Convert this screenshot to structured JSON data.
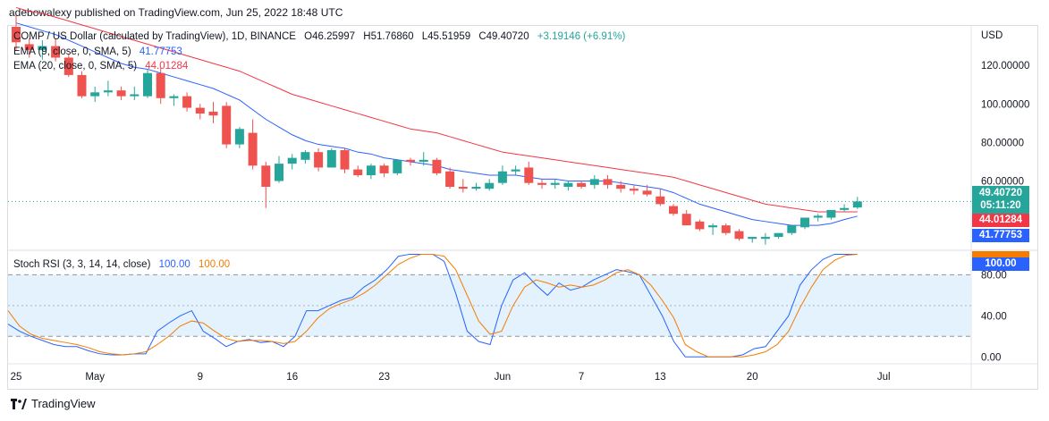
{
  "header": {
    "publisher_line": "adebowalexy published on TradingView.com, Jun 25, 2022 18:48 UTC"
  },
  "footer": {
    "brand": "TradingView",
    "logo_icon": "tradingview-logo-icon"
  },
  "colors": {
    "up": "#26a69a",
    "down": "#ef5350",
    "ema9": "#2962ff",
    "ema20": "#f23645",
    "k_line": "#2962ff",
    "d_line": "#f57c00",
    "band_fill": "#e3f2fd",
    "last_price": "#26a69a"
  },
  "chart_data": [
    {
      "type": "candlestick",
      "title": "COMP / US Dollar (calculated by TradingView), 1D, BINANCE",
      "ohlc_readout": {
        "open": "O46.25997",
        "high": "H51.76860",
        "low": "L45.51959",
        "close": "C49.40720",
        "change": "+3.19146 (+6.91%)"
      },
      "currency": "USD",
      "y_ticks": [
        "120.00000",
        "100.00000",
        "80.00000",
        "60.00000"
      ],
      "y_tick_values": [
        120,
        100,
        80,
        60
      ],
      "ylim": [
        25,
        140
      ],
      "x_tick_labels": [
        "25",
        "May",
        "9",
        "16",
        "23",
        "Jun",
        "7",
        "13",
        "20",
        "Jul"
      ],
      "x_tick_days": [
        0,
        6,
        14,
        21,
        28,
        37,
        43,
        49,
        56,
        66
      ],
      "start_date": "2022-04-25",
      "candles": [
        {
          "o": 140,
          "h": 146,
          "l": 128,
          "c": 132
        },
        {
          "o": 131,
          "h": 134,
          "l": 124,
          "c": 128
        },
        {
          "o": 128,
          "h": 133,
          "l": 123,
          "c": 130
        },
        {
          "o": 130,
          "h": 134,
          "l": 122,
          "c": 124
        },
        {
          "o": 124,
          "h": 126,
          "l": 114,
          "c": 115
        },
        {
          "o": 115,
          "h": 117,
          "l": 103,
          "c": 104
        },
        {
          "o": 104,
          "h": 109,
          "l": 101,
          "c": 106
        },
        {
          "o": 106,
          "h": 112,
          "l": 104,
          "c": 107
        },
        {
          "o": 107,
          "h": 109,
          "l": 102,
          "c": 104
        },
        {
          "o": 104,
          "h": 109,
          "l": 102,
          "c": 105
        },
        {
          "o": 104,
          "h": 118,
          "l": 103,
          "c": 116
        },
        {
          "o": 116,
          "h": 119,
          "l": 100,
          "c": 103
        },
        {
          "o": 103,
          "h": 105,
          "l": 99,
          "c": 104
        },
        {
          "o": 104,
          "h": 106,
          "l": 96,
          "c": 98
        },
        {
          "o": 98,
          "h": 100,
          "l": 92,
          "c": 95
        },
        {
          "o": 96,
          "h": 101,
          "l": 90,
          "c": 94
        },
        {
          "o": 99,
          "h": 101,
          "l": 77,
          "c": 79
        },
        {
          "o": 79,
          "h": 88,
          "l": 77,
          "c": 87
        },
        {
          "o": 85,
          "h": 92,
          "l": 66,
          "c": 68
        },
        {
          "o": 68,
          "h": 70,
          "l": 46,
          "c": 57
        },
        {
          "o": 60,
          "h": 73,
          "l": 59,
          "c": 69
        },
        {
          "o": 69,
          "h": 74,
          "l": 66,
          "c": 72
        },
        {
          "o": 71,
          "h": 76,
          "l": 69,
          "c": 75
        },
        {
          "o": 75,
          "h": 77,
          "l": 65,
          "c": 67
        },
        {
          "o": 67,
          "h": 77,
          "l": 67,
          "c": 76
        },
        {
          "o": 76,
          "h": 77,
          "l": 64,
          "c": 66
        },
        {
          "o": 66,
          "h": 68,
          "l": 62,
          "c": 63
        },
        {
          "o": 63,
          "h": 69,
          "l": 61,
          "c": 68
        },
        {
          "o": 68,
          "h": 69,
          "l": 62,
          "c": 64
        },
        {
          "o": 64,
          "h": 71,
          "l": 63,
          "c": 71
        },
        {
          "o": 71,
          "h": 72,
          "l": 68,
          "c": 70
        },
        {
          "o": 70,
          "h": 75,
          "l": 68,
          "c": 71
        },
        {
          "o": 71,
          "h": 72,
          "l": 63,
          "c": 64
        },
        {
          "o": 65,
          "h": 67,
          "l": 56,
          "c": 57
        },
        {
          "o": 57,
          "h": 61,
          "l": 54,
          "c": 56
        },
        {
          "o": 56,
          "h": 59,
          "l": 55,
          "c": 57
        },
        {
          "o": 56,
          "h": 61,
          "l": 55,
          "c": 59
        },
        {
          "o": 59,
          "h": 68,
          "l": 58,
          "c": 65
        },
        {
          "o": 65,
          "h": 68,
          "l": 63,
          "c": 66
        },
        {
          "o": 67,
          "h": 70,
          "l": 58,
          "c": 59
        },
        {
          "o": 59,
          "h": 61,
          "l": 56,
          "c": 58
        },
        {
          "o": 58,
          "h": 61,
          "l": 56,
          "c": 59
        },
        {
          "o": 57,
          "h": 60,
          "l": 55,
          "c": 59
        },
        {
          "o": 59,
          "h": 60,
          "l": 56,
          "c": 57
        },
        {
          "o": 58,
          "h": 63,
          "l": 56,
          "c": 61
        },
        {
          "o": 61,
          "h": 63,
          "l": 56,
          "c": 58
        },
        {
          "o": 58,
          "h": 60,
          "l": 54,
          "c": 56
        },
        {
          "o": 56,
          "h": 58,
          "l": 53,
          "c": 55
        },
        {
          "o": 55,
          "h": 58,
          "l": 52,
          "c": 53
        },
        {
          "o": 52,
          "h": 56,
          "l": 47,
          "c": 48
        },
        {
          "o": 47,
          "h": 48,
          "l": 42,
          "c": 43
        },
        {
          "o": 43,
          "h": 45,
          "l": 37,
          "c": 37
        },
        {
          "o": 39,
          "h": 40,
          "l": 34,
          "c": 35
        },
        {
          "o": 36,
          "h": 38,
          "l": 32,
          "c": 37
        },
        {
          "o": 37,
          "h": 38,
          "l": 32,
          "c": 33
        },
        {
          "o": 34,
          "h": 35,
          "l": 29,
          "c": 30
        },
        {
          "o": 30,
          "h": 31,
          "l": 28,
          "c": 31
        },
        {
          "o": 30,
          "h": 33,
          "l": 27,
          "c": 31
        },
        {
          "o": 31,
          "h": 33,
          "l": 30,
          "c": 33
        },
        {
          "o": 33,
          "h": 37,
          "l": 32,
          "c": 37
        },
        {
          "o": 36,
          "h": 41,
          "l": 35,
          "c": 41
        },
        {
          "o": 41,
          "h": 43,
          "l": 39,
          "c": 42
        },
        {
          "o": 41,
          "h": 44,
          "l": 40,
          "c": 45
        },
        {
          "o": 45,
          "h": 48,
          "l": 44,
          "c": 46
        },
        {
          "o": 46.26,
          "h": 51.77,
          "l": 45.52,
          "c": 49.41
        }
      ],
      "indicators": [
        {
          "name": "EMA (9, close, 0, SMA, 5)",
          "value": "41.77753",
          "color": "#2962ff",
          "values": [
            142,
            140,
            138,
            136,
            133,
            130,
            127,
            124,
            121,
            119,
            118,
            116,
            114,
            112,
            110,
            108,
            105,
            102,
            97,
            92,
            88,
            84,
            81,
            79,
            78,
            77,
            75,
            74,
            72,
            71,
            70,
            69,
            68,
            66,
            65,
            64,
            63,
            63,
            63,
            62,
            61,
            61,
            60,
            60,
            60,
            60,
            59,
            58,
            57,
            56,
            54,
            51,
            48,
            46,
            44,
            42,
            40,
            39,
            38,
            37,
            37,
            37,
            38,
            40,
            41.78
          ]
        },
        {
          "name": "EMA (20, close, 0, SMA, 5)",
          "value": "44.01284",
          "color": "#f23645",
          "values": [
            150,
            148,
            147,
            145,
            143,
            141,
            139,
            137,
            135,
            133,
            131,
            129,
            127,
            125,
            123,
            121,
            119,
            117,
            114,
            111,
            108,
            105,
            103,
            101,
            99,
            97,
            95,
            93,
            91,
            89,
            87,
            86,
            85,
            83,
            81,
            79,
            77,
            75,
            74,
            73,
            72,
            71,
            70,
            69,
            68,
            67,
            66,
            65,
            64,
            63,
            62,
            60,
            58,
            56,
            54,
            52,
            50,
            48,
            47,
            46,
            45,
            44,
            44,
            44,
            44.01
          ]
        }
      ],
      "last_price": "49.40720",
      "countdown": "05:11:20"
    },
    {
      "type": "line",
      "title": "Stoch RSI (3, 3, 14, 14, close)",
      "y_ticks": [
        "80.00",
        "40.00",
        "0.00"
      ],
      "y_tick_values": [
        80,
        40,
        0
      ],
      "ylim": [
        -5,
        103
      ],
      "band": [
        20,
        80
      ],
      "mid_line": 50,
      "series": [
        {
          "name": "K",
          "value": "100.00",
          "color": "#2962ff",
          "values": [
            32,
            25,
            20,
            16,
            12,
            10,
            10,
            6,
            3,
            2,
            2,
            3,
            3,
            25,
            33,
            40,
            45,
            25,
            18,
            10,
            15,
            17,
            14,
            15,
            10,
            20,
            45,
            45,
            50,
            55,
            58,
            68,
            75,
            85,
            98,
            102,
            102,
            101,
            93,
            62,
            25,
            15,
            12,
            50,
            75,
            82,
            70,
            60,
            72,
            65,
            68,
            75,
            80,
            85,
            83,
            80,
            60,
            40,
            15,
            0,
            0,
            0,
            0,
            0,
            2,
            8,
            10,
            25,
            40,
            70,
            85,
            95,
            100,
            100,
            100
          ]
        },
        {
          "name": "D",
          "value": "100.00",
          "color": "#f57c00",
          "values": [
            45,
            30,
            22,
            18,
            16,
            14,
            12,
            9,
            5,
            3,
            2,
            3,
            5,
            12,
            20,
            30,
            35,
            33,
            25,
            18,
            15,
            16,
            16,
            15,
            13,
            15,
            25,
            38,
            47,
            52,
            56,
            62,
            70,
            80,
            90,
            96,
            102,
            102,
            98,
            85,
            60,
            35,
            22,
            25,
            50,
            68,
            75,
            72,
            68,
            70,
            68,
            70,
            75,
            82,
            85,
            80,
            70,
            55,
            38,
            12,
            5,
            0,
            0,
            0,
            0,
            2,
            5,
            12,
            25,
            48,
            68,
            85,
            94,
            99,
            100
          ]
        }
      ],
      "k_label": "100.00",
      "d_label": "100.00"
    }
  ]
}
